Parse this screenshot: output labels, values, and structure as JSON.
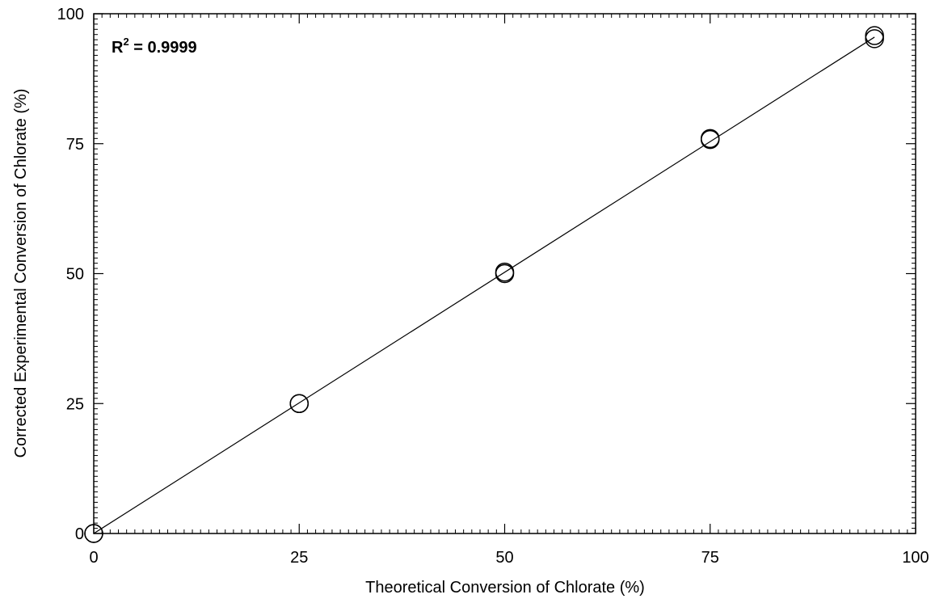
{
  "chart_data": {
    "type": "scatter",
    "xlabel": "Theoretical Conversion of Chlorate (%)",
    "ylabel": "Corrected Experimental Conversion of Chlorate (%)",
    "xlim": [
      0,
      100
    ],
    "ylim": [
      0,
      100
    ],
    "xticks": [
      0,
      25,
      50,
      75,
      100
    ],
    "yticks": [
      0,
      25,
      50,
      75,
      100
    ],
    "minor_ticks_per_major": 25,
    "grid": false,
    "annotation": {
      "base": "R",
      "superscript": "2",
      "rest": " = 0.9999"
    },
    "series": [
      {
        "marker": "open-circle",
        "points": [
          {
            "x": 0,
            "y": 0
          },
          {
            "x": 0,
            "y": 0
          },
          {
            "x": 25,
            "y": 25
          },
          {
            "x": 25,
            "y": 25
          },
          {
            "x": 50,
            "y": 50
          },
          {
            "x": 50,
            "y": 50.3
          },
          {
            "x": 75,
            "y": 76
          },
          {
            "x": 75,
            "y": 75.8
          },
          {
            "x": 95,
            "y": 95.2
          },
          {
            "x": 95,
            "y": 95.8
          }
        ]
      }
    ],
    "fit_line": {
      "x": [
        0,
        95
      ],
      "y": [
        0,
        95.5
      ]
    }
  }
}
